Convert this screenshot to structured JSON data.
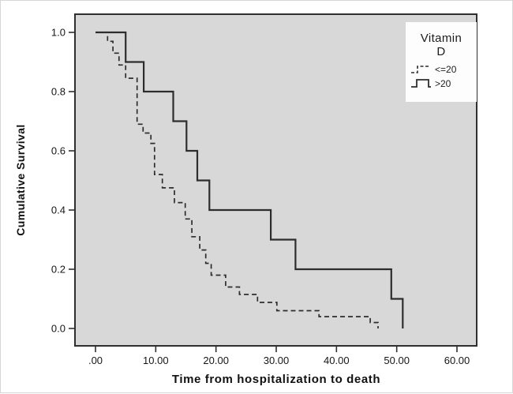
{
  "y_axis": {
    "title": "Cumulative Survival",
    "tick_labels": [
      "0.0",
      "0.2",
      "0.4",
      "0.6",
      "0.8",
      "1.0"
    ],
    "tick_values": [
      0.0,
      0.2,
      0.4,
      0.6,
      0.8,
      1.0
    ]
  },
  "x_axis": {
    "title": "Time from hospitalization to death",
    "tick_labels": [
      ".00",
      "10.00",
      "20.00",
      "30.00",
      "40.00",
      "50.00",
      "60.00"
    ],
    "tick_values": [
      0,
      10,
      20,
      30,
      40,
      50,
      60
    ]
  },
  "legend": {
    "title_line1": "Vitamin",
    "title_line2": "D",
    "entries": [
      {
        "label": "<=20",
        "style": "dashed"
      },
      {
        "label": ">20",
        "style": "solid"
      }
    ]
  },
  "colors": {
    "plot_background": "#d8d8d8",
    "curve": "#2d2d2d",
    "axis": "#2f2f2f",
    "legend_background": "#fdfdfd"
  },
  "chart_data": {
    "type": "line",
    "subtype": "kaplan-meier-step",
    "title": "",
    "xlabel": "Time from hospitalization to death",
    "ylabel": "Cumulative Survival",
    "xlim": [
      0,
      63
    ],
    "ylim": [
      0,
      1.05
    ],
    "grid": false,
    "legend_position": "top-right-inside",
    "legend_title": "Vitamin D",
    "series": [
      {
        "name": "<=20",
        "style": "dashed",
        "points": [
          [
            0,
            1.0
          ],
          [
            2,
            1.0
          ],
          [
            2,
            0.97
          ],
          [
            2.9,
            0.97
          ],
          [
            2.9,
            0.93
          ],
          [
            3.9,
            0.93
          ],
          [
            3.9,
            0.89
          ],
          [
            5,
            0.89
          ],
          [
            5,
            0.845
          ],
          [
            6.9,
            0.845
          ],
          [
            6.9,
            0.69
          ],
          [
            7.9,
            0.69
          ],
          [
            7.9,
            0.66
          ],
          [
            9.2,
            0.66
          ],
          [
            9.2,
            0.625
          ],
          [
            9.8,
            0.625
          ],
          [
            9.8,
            0.52
          ],
          [
            11.1,
            0.52
          ],
          [
            11.1,
            0.475
          ],
          [
            13.1,
            0.475
          ],
          [
            13.1,
            0.425
          ],
          [
            14.9,
            0.425
          ],
          [
            14.9,
            0.37
          ],
          [
            16,
            0.37
          ],
          [
            16,
            0.31
          ],
          [
            17.3,
            0.31
          ],
          [
            17.3,
            0.265
          ],
          [
            18.3,
            0.265
          ],
          [
            18.3,
            0.22
          ],
          [
            19.2,
            0.22
          ],
          [
            19.2,
            0.18
          ],
          [
            21.6,
            0.18
          ],
          [
            21.6,
            0.14
          ],
          [
            23.9,
            0.14
          ],
          [
            23.9,
            0.115
          ],
          [
            26.9,
            0.115
          ],
          [
            26.9,
            0.088
          ],
          [
            30.1,
            0.088
          ],
          [
            30.1,
            0.06
          ],
          [
            37.1,
            0.06
          ],
          [
            37.1,
            0.04
          ],
          [
            45.6,
            0.04
          ],
          [
            45.6,
            0.02
          ],
          [
            46.9,
            0.02
          ],
          [
            46.9,
            0.0
          ]
        ]
      },
      {
        "name": ">20",
        "style": "solid",
        "points": [
          [
            0,
            1.0
          ],
          [
            5,
            1.0
          ],
          [
            5,
            0.9
          ],
          [
            8,
            0.9
          ],
          [
            8,
            0.8
          ],
          [
            12.9,
            0.8
          ],
          [
            12.9,
            0.7
          ],
          [
            15.1,
            0.7
          ],
          [
            15.1,
            0.6
          ],
          [
            16.9,
            0.6
          ],
          [
            16.9,
            0.5
          ],
          [
            18.9,
            0.5
          ],
          [
            18.9,
            0.4
          ],
          [
            29.1,
            0.4
          ],
          [
            29.1,
            0.3
          ],
          [
            33.2,
            0.3
          ],
          [
            33.2,
            0.2
          ],
          [
            49.1,
            0.2
          ],
          [
            49.1,
            0.1
          ],
          [
            51,
            0.1
          ],
          [
            51,
            0.0
          ]
        ]
      }
    ]
  }
}
